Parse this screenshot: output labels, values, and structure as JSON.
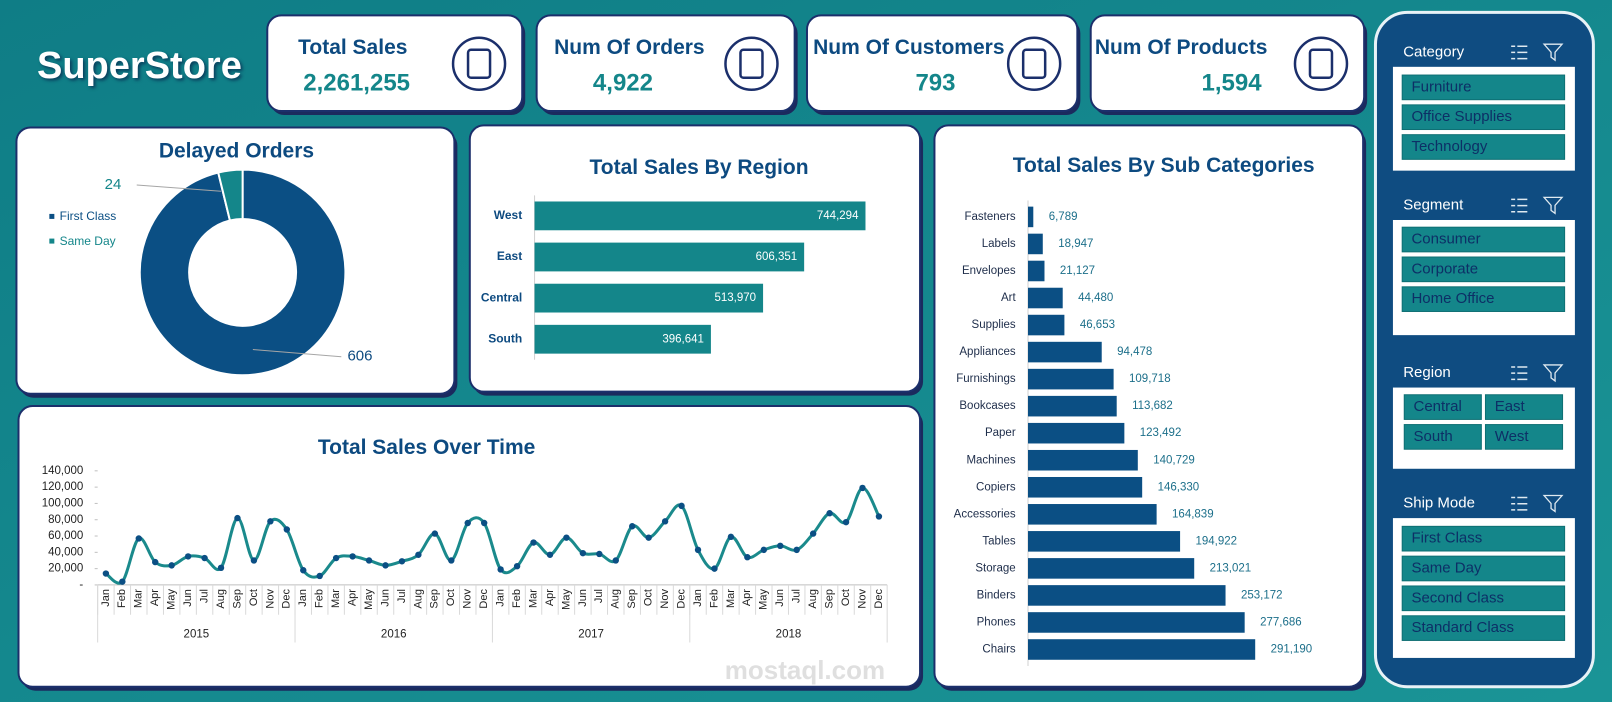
{
  "header": {
    "title": "SuperStore"
  },
  "kpis": [
    {
      "label": "Total Sales",
      "value": "2,261,255"
    },
    {
      "label": "Num Of Orders",
      "value": "4,922"
    },
    {
      "label": "Num Of Customers",
      "value": "793"
    },
    {
      "label": "Num Of Products",
      "value": "1,594"
    }
  ],
  "chart_data": [
    {
      "type": "donut",
      "title": "Delayed Orders",
      "categories": [
        "First Class",
        "Same Day"
      ],
      "values": [
        606,
        24
      ],
      "colors": [
        "#0b4f84",
        "#14868a"
      ],
      "legend": "left"
    },
    {
      "type": "bar",
      "orientation": "horizontal",
      "title": "Total Sales By Region",
      "categories": [
        "West",
        "East",
        "Central",
        "South"
      ],
      "values": [
        744294,
        606351,
        513970,
        396641
      ],
      "value_labels": [
        "744,294",
        "606,351",
        "513,970",
        "396,641"
      ],
      "color": "#14868a",
      "xlim": [
        0,
        800000
      ]
    },
    {
      "type": "bar",
      "orientation": "horizontal",
      "title": "Total Sales By Sub Categories",
      "categories": [
        "Fasteners",
        "Labels",
        "Envelopes",
        "Art",
        "Supplies",
        "Appliances",
        "Furnishings",
        "Bookcases",
        "Paper",
        "Machines",
        "Copiers",
        "Accessories",
        "Tables",
        "Storage",
        "Binders",
        "Phones",
        "Chairs"
      ],
      "values": [
        6789,
        18947,
        21127,
        44480,
        46653,
        94478,
        109718,
        113682,
        123492,
        140729,
        146330,
        164839,
        194922,
        213021,
        253172,
        277686,
        291190
      ],
      "value_labels": [
        "6,789",
        "18,947",
        "21,127",
        "44,480",
        "46,653",
        "94,478",
        "109,718",
        "113,682",
        "123,492",
        "140,729",
        "146,330",
        "164,839",
        "194,922",
        "213,021",
        "253,172",
        "277,686",
        "291,190"
      ],
      "color": "#0b4f84",
      "xlim": [
        0,
        300000
      ]
    },
    {
      "type": "line",
      "title": "Total Sales Over Time",
      "categories": [
        "Jan",
        "Feb",
        "Mar",
        "Apr",
        "May",
        "Jun",
        "Jul",
        "Aug",
        "Sep",
        "Oct",
        "Nov",
        "Dec",
        "Jan",
        "Feb",
        "Mar",
        "Apr",
        "May",
        "Jun",
        "Jul",
        "Aug",
        "Sep",
        "Oct",
        "Nov",
        "Dec",
        "Jan",
        "Feb",
        "Mar",
        "Apr",
        "May",
        "Jun",
        "Jul",
        "Aug",
        "Sep",
        "Oct",
        "Nov",
        "Dec",
        "Jan",
        "Feb",
        "Mar",
        "Apr",
        "May",
        "Jun",
        "Jul",
        "Aug",
        "Sep",
        "Oct",
        "Nov",
        "Dec"
      ],
      "years": [
        "2015",
        "2016",
        "2017",
        "2018"
      ],
      "values": [
        14000,
        4000,
        57000,
        28000,
        24000,
        35000,
        33000,
        21000,
        82000,
        30000,
        78000,
        68000,
        18000,
        11000,
        33000,
        35000,
        30000,
        24000,
        29000,
        37000,
        63000,
        30000,
        76000,
        76000,
        19000,
        23000,
        52000,
        37000,
        58000,
        39000,
        38000,
        30000,
        72000,
        58000,
        78000,
        97000,
        43000,
        20000,
        59000,
        34000,
        43000,
        48000,
        43000,
        63000,
        88000,
        77000,
        119000,
        84000
      ],
      "color": "#1a8a8c",
      "marker_color": "#0b4f84",
      "ylim": [
        0,
        140000
      ],
      "yticks": [
        {
          "value": 0,
          "label": "-"
        },
        {
          "value": 20000,
          "label": "20,000"
        },
        {
          "value": 40000,
          "label": "40,000"
        },
        {
          "value": 60000,
          "label": "60,000"
        },
        {
          "value": 80000,
          "label": "80,000"
        },
        {
          "value": 100000,
          "label": "100,000"
        },
        {
          "value": 120000,
          "label": "120,000"
        },
        {
          "value": 140000,
          "label": "140,000"
        }
      ]
    }
  ],
  "slicers": [
    {
      "title": "Category",
      "items": [
        "Furniture",
        "Office Supplies",
        "Technology"
      ]
    },
    {
      "title": "Segment",
      "items": [
        "Consumer",
        "Corporate",
        "Home Office"
      ]
    },
    {
      "title": "Region",
      "items": [
        "Central",
        "East",
        "South",
        "West"
      ]
    },
    {
      "title": "Ship Mode",
      "items": [
        "First Class",
        "Same Day",
        "Second Class",
        "Standard Class"
      ]
    }
  ],
  "watermark": "mostaql.com"
}
